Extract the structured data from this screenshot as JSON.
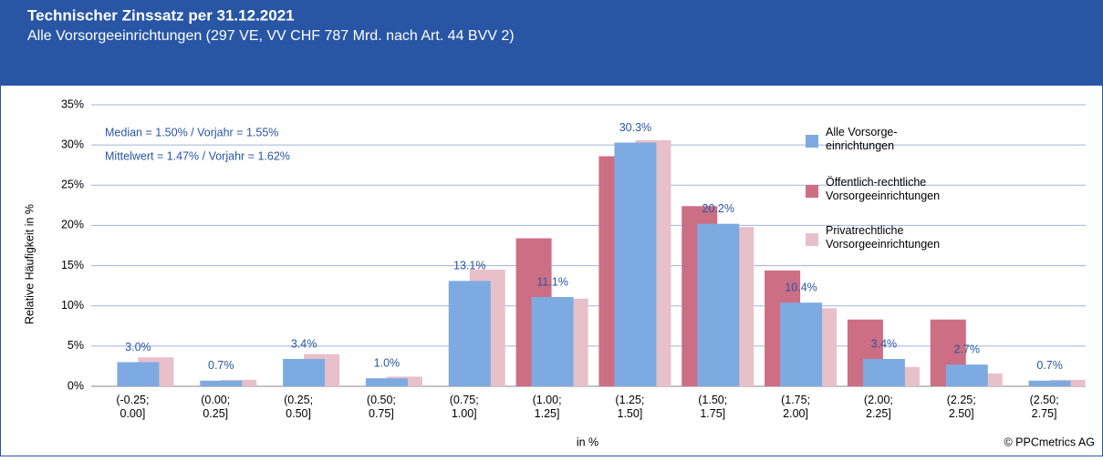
{
  "chart_data": {
    "type": "bar",
    "title": "Technischer Zinssatz per 31.12.2021",
    "subtitle": "Alle Vorsorgeeinrichtungen (297 VE, VV CHF 787 Mrd. nach Art. 44 BVV 2)",
    "y_label": "Relative Häufigkeit in %",
    "x_label": "in %",
    "annotations": [
      "Median = 1.50% / Vorjahr = 1.55%",
      "Mittelwert = 1.47% / Vorjahr = 1.62%"
    ],
    "copyright": "© PPCmetrics AG",
    "categories": [
      "(-0.25; 0.00]",
      "(0.00; 0.25]",
      "(0.25; 0.50]",
      "(0.50; 0.75]",
      "(0.75; 1.00]",
      "(1.00; 1.25]",
      "(1.25; 1.50]",
      "(1.50; 1.75]",
      "(1.75; 2.00]",
      "(2.00; 2.25]",
      "(2.25; 2.50]",
      "(2.50; 2.75]"
    ],
    "series": [
      {
        "name": "Alle Vorsorge-einrichtungen",
        "color": "#7eaae2",
        "values": [
          3.0,
          0.7,
          3.4,
          1.0,
          13.1,
          11.1,
          30.3,
          20.2,
          10.4,
          3.4,
          2.7,
          0.7
        ],
        "value_labels": [
          "3.0%",
          "0.7%",
          "3.4%",
          "1.0%",
          "13.1%",
          "11.1%",
          "30.3%",
          "20.2%",
          "10.4%",
          "3.4%",
          "2.7%",
          "0.7%"
        ]
      },
      {
        "name": "Öffentlich-rechtliche Vorsorgeeinrichtungen",
        "color": "#cc6e84",
        "values": [
          0,
          0,
          0,
          0,
          0,
          18.4,
          28.6,
          22.4,
          14.4,
          8.3,
          8.3,
          0
        ]
      },
      {
        "name": "Privatrechtliche Vorsorgeeinrichtungen",
        "color": "#e8c0ca",
        "values": [
          3.6,
          0.8,
          4.0,
          1.2,
          14.5,
          10.9,
          30.6,
          19.8,
          9.7,
          2.4,
          1.6,
          0.8
        ]
      }
    ],
    "ylim": [
      0,
      35
    ],
    "yticks": [
      {
        "value": 0,
        "label": "0%"
      },
      {
        "value": 5,
        "label": "5%"
      },
      {
        "value": 10,
        "label": "10%"
      },
      {
        "value": 15,
        "label": "15%"
      },
      {
        "value": 20,
        "label": "20%"
      },
      {
        "value": 25,
        "label": "25%"
      },
      {
        "value": 30,
        "label": "30%"
      },
      {
        "value": 35,
        "label": "35%"
      }
    ],
    "grid": true
  }
}
